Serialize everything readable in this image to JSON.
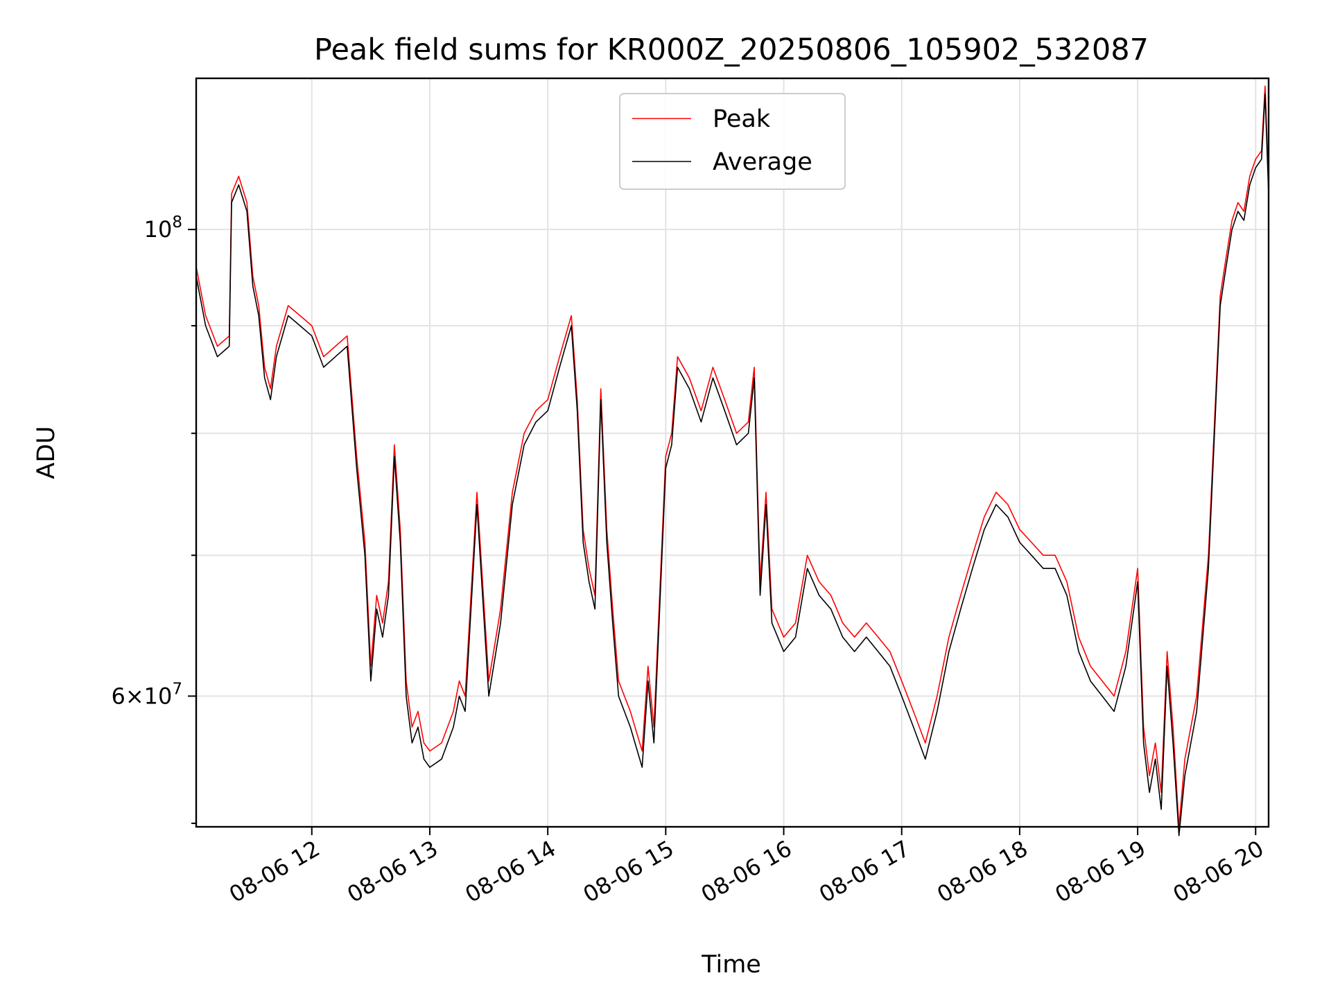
{
  "chart_data": {
    "type": "line",
    "title": "Peak field sums for KR000Z_20250806_105902_532087",
    "xlabel": "Time",
    "ylabel": "ADU",
    "x_unit": "hours of day on 08-06",
    "y_scale": "log",
    "xlim": [
      11.02,
      20.11
    ],
    "ylim": [
      52000000,
      118000000
    ],
    "grid": true,
    "legend_position": "top-center",
    "x_ticks": [
      {
        "value": 12,
        "label": "08-06 12"
      },
      {
        "value": 13,
        "label": "08-06 13"
      },
      {
        "value": 14,
        "label": "08-06 14"
      },
      {
        "value": 15,
        "label": "08-06 15"
      },
      {
        "value": 16,
        "label": "08-06 16"
      },
      {
        "value": 17,
        "label": "08-06 17"
      },
      {
        "value": 18,
        "label": "08-06 18"
      },
      {
        "value": 19,
        "label": "08-06 19"
      },
      {
        "value": 20,
        "label": "08-06 20"
      }
    ],
    "y_major_ticks": [
      {
        "value": 60000000,
        "mantissa": "6",
        "base": "10",
        "exponent": "7"
      },
      {
        "value": 100000000,
        "mantissa": "",
        "base": "10",
        "exponent": "8"
      }
    ],
    "y_minor_ticks": [
      70000000,
      80000000,
      90000000
    ],
    "x": [
      11.02,
      11.1,
      11.2,
      11.3,
      11.32,
      11.38,
      11.45,
      11.5,
      11.55,
      11.6,
      11.65,
      11.7,
      11.8,
      11.9,
      12.0,
      12.1,
      12.2,
      12.3,
      12.38,
      12.45,
      12.5,
      12.55,
      12.6,
      12.65,
      12.7,
      12.75,
      12.8,
      12.85,
      12.9,
      12.95,
      13.0,
      13.1,
      13.2,
      13.25,
      13.3,
      13.4,
      13.5,
      13.6,
      13.7,
      13.8,
      13.9,
      14.0,
      14.1,
      14.2,
      14.25,
      14.3,
      14.35,
      14.4,
      14.45,
      14.5,
      14.55,
      14.6,
      14.7,
      14.8,
      14.85,
      14.9,
      15.0,
      15.05,
      15.1,
      15.2,
      15.3,
      15.4,
      15.5,
      15.6,
      15.7,
      15.75,
      15.8,
      15.85,
      15.9,
      16.0,
      16.1,
      16.2,
      16.3,
      16.4,
      16.5,
      16.6,
      16.7,
      16.8,
      16.9,
      17.0,
      17.1,
      17.2,
      17.3,
      17.4,
      17.5,
      17.6,
      17.7,
      17.8,
      17.9,
      18.0,
      18.1,
      18.2,
      18.3,
      18.4,
      18.5,
      18.6,
      18.7,
      18.8,
      18.9,
      19.0,
      19.05,
      19.1,
      19.15,
      19.2,
      19.25,
      19.3,
      19.35,
      19.4,
      19.5,
      19.6,
      19.7,
      19.75,
      19.8,
      19.85,
      19.9,
      19.95,
      20.0,
      20.05,
      20.08,
      20.11
    ],
    "series": [
      {
        "name": "Peak",
        "color": "#ff0000",
        "values": [
          96000000,
          91000000,
          88000000,
          89000000,
          104000000,
          106000000,
          103000000,
          95000000,
          92000000,
          86000000,
          84000000,
          88000000,
          92000000,
          91000000,
          90000000,
          87000000,
          88000000,
          89000000,
          78000000,
          71000000,
          62000000,
          67000000,
          65000000,
          68000000,
          79000000,
          72000000,
          61000000,
          58000000,
          59000000,
          57000000,
          56500000,
          57000000,
          59000000,
          61000000,
          60000000,
          75000000,
          61000000,
          66000000,
          75000000,
          80000000,
          82000000,
          83000000,
          87000000,
          91000000,
          83000000,
          72000000,
          69000000,
          67000000,
          84000000,
          72000000,
          66000000,
          61000000,
          59000000,
          56500000,
          62000000,
          58000000,
          78000000,
          80000000,
          87000000,
          85000000,
          82000000,
          86000000,
          83000000,
          80000000,
          81000000,
          86000000,
          68000000,
          75000000,
          66000000,
          64000000,
          65000000,
          70000000,
          68000000,
          67000000,
          65000000,
          64000000,
          65000000,
          64000000,
          63000000,
          61000000,
          59000000,
          57000000,
          60000000,
          64000000,
          67000000,
          70000000,
          73000000,
          75000000,
          74000000,
          72000000,
          71000000,
          70000000,
          70000000,
          68000000,
          64000000,
          62000000,
          61000000,
          60000000,
          63000000,
          69000000,
          58000000,
          55000000,
          57000000,
          54000000,
          63000000,
          58000000,
          52000000,
          56000000,
          60000000,
          70000000,
          93000000,
          97000000,
          101000000,
          103000000,
          102000000,
          106000000,
          108000000,
          109000000,
          117000000,
          105000000
        ]
      },
      {
        "name": "Average",
        "color": "#000000",
        "values": [
          95000000,
          90000000,
          87000000,
          88000000,
          103000000,
          105000000,
          102000000,
          94000000,
          91000000,
          85000000,
          83000000,
          87000000,
          91000000,
          90000000,
          89000000,
          86000000,
          87000000,
          88000000,
          77000000,
          70000000,
          61000000,
          66000000,
          64000000,
          67000000,
          78000000,
          71000000,
          60000000,
          57000000,
          58000000,
          56000000,
          55500000,
          56000000,
          58000000,
          60000000,
          59000000,
          74000000,
          60000000,
          65000000,
          74000000,
          79000000,
          81000000,
          82000000,
          86000000,
          90000000,
          82000000,
          71000000,
          68000000,
          66000000,
          83000000,
          71000000,
          65000000,
          60000000,
          58000000,
          55500000,
          61000000,
          57000000,
          77000000,
          79000000,
          86000000,
          84000000,
          81000000,
          85000000,
          82000000,
          79000000,
          80000000,
          85000000,
          67000000,
          74000000,
          65000000,
          63000000,
          64000000,
          69000000,
          67000000,
          66000000,
          64000000,
          63000000,
          64000000,
          63000000,
          62000000,
          60000000,
          58000000,
          56000000,
          59000000,
          63000000,
          66000000,
          69000000,
          72000000,
          74000000,
          73000000,
          71000000,
          70000000,
          69000000,
          69000000,
          67000000,
          63000000,
          61000000,
          60000000,
          59000000,
          62000000,
          68000000,
          57000000,
          54000000,
          56000000,
          53000000,
          62000000,
          57000000,
          51500000,
          55000000,
          59000000,
          69000000,
          92000000,
          96000000,
          100000000,
          102000000,
          101000000,
          105000000,
          107000000,
          108000000,
          116000000,
          104000000
        ]
      }
    ]
  }
}
